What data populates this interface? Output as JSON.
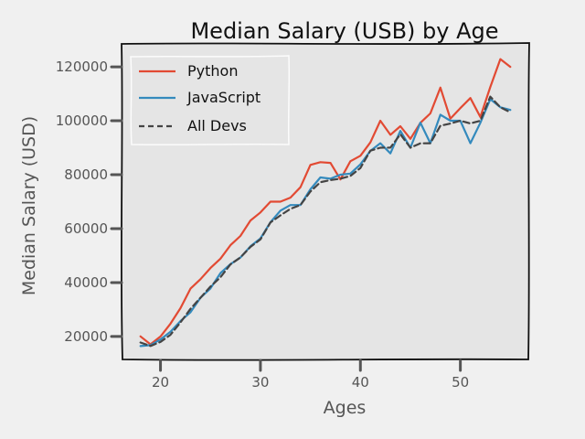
{
  "chart_data": {
    "type": "line",
    "title": "Median Salary (USB) by Age",
    "xlabel": "Ages",
    "ylabel": "Median Salary (USD)",
    "xlim": [
      16.2,
      56.8
    ],
    "ylim": [
      11500,
      128500
    ],
    "xticks": [
      20,
      30,
      40,
      50
    ],
    "xtick_labels": [
      "20",
      "30",
      "40",
      "50"
    ],
    "yticks": [
      20000,
      40000,
      60000,
      80000,
      100000,
      120000
    ],
    "ytick_labels": [
      "20000",
      "40000",
      "60000",
      "80000",
      "100000",
      "120000"
    ],
    "grid": false,
    "legend_position": "upper-left",
    "background": "#e5e5e5",
    "x": [
      18,
      19,
      20,
      21,
      22,
      23,
      24,
      25,
      26,
      27,
      28,
      29,
      30,
      31,
      32,
      33,
      34,
      35,
      36,
      37,
      38,
      39,
      40,
      41,
      42,
      43,
      44,
      45,
      46,
      47,
      48,
      49,
      50,
      51,
      52,
      53,
      54,
      55
    ],
    "series": [
      {
        "name": "Python",
        "color": "#e24a33",
        "style": "solid",
        "values": [
          20046,
          17100,
          20000,
          24744,
          30500,
          37732,
          41247,
          45372,
          48876,
          53850,
          57287,
          63016,
          65998,
          70003,
          70000,
          71496,
          75370,
          83640,
          84666,
          84392,
          78254,
          85000,
          87038,
          91991,
          100000,
          94796,
          97962,
          93302,
          99240,
          102736,
          112285,
          100771,
          104708,
          108423,
          101407,
          112542,
          122870,
          120000
        ]
      },
      {
        "name": "JavaScript",
        "color": "#348abd",
        "style": "solid",
        "values": [
          16446,
          16791,
          18942,
          21780,
          25704,
          29000,
          34372,
          37810,
          43515,
          46823,
          49293,
          53437,
          56373,
          62375,
          66674,
          68745,
          68746,
          74583,
          79000,
          78508,
          79996,
          80403,
          83820,
          88833,
          91660,
          87892,
          96243,
          90000,
          99313,
          91660,
          102264,
          100000,
          100000,
          91660,
          99240,
          108000,
          105000,
          104000
        ]
      },
      {
        "name": "All Devs",
        "color": "#444444",
        "style": "dashed",
        "values": [
          17784,
          16500,
          18012,
          20628,
          25206,
          30252,
          34368,
          38496,
          42000,
          46752,
          49320,
          53200,
          56000,
          62316,
          64928,
          67317,
          68748,
          73752,
          77232,
          78000,
          78508,
          79536,
          82488,
          88935,
          90000,
          90056,
          95000,
          90000,
          91633,
          91660,
          98150,
          98964,
          100000,
          98988,
          100000,
          108923,
          105000,
          103117
        ]
      }
    ]
  }
}
